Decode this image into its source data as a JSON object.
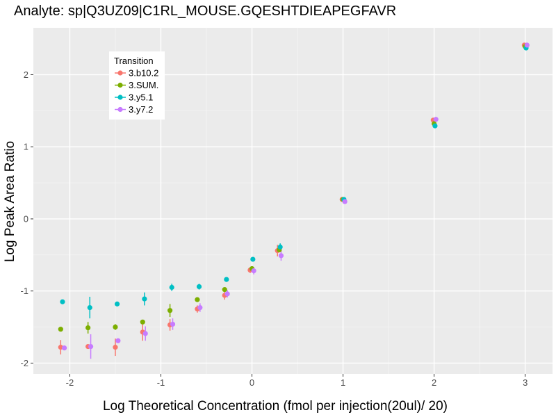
{
  "chart_data": {
    "type": "scatter",
    "title": "Analyte: sp|Q3UZ09|C1RL_MOUSE.GQESHTDIEAPEGFAVR",
    "xlabel": "Log Theoretical Concentration (fmol per injection(20ul)/ 20)",
    "ylabel": "Log Peak Area Ratio",
    "xlim": [
      -2.4,
      3.3
    ],
    "ylim": [
      -2.15,
      2.65
    ],
    "xticks": [
      -2,
      -1,
      0,
      1,
      2,
      3
    ],
    "yticks": [
      -2,
      -1,
      0,
      1,
      2
    ],
    "xtick_labels": [
      "-2",
      "-1",
      "0",
      "1",
      "2",
      "3"
    ],
    "ytick_labels": [
      "-2",
      "-1",
      "0",
      "1",
      "2"
    ],
    "grid": true,
    "legend": {
      "title": "Transition",
      "position": "top-left"
    },
    "series": [
      {
        "name": "3.b10.2",
        "color": "#F8766D",
        "points": [
          {
            "x": -2.1,
            "y": -1.78,
            "err": 0.1
          },
          {
            "x": -1.8,
            "y": -1.77,
            "err": 0.03
          },
          {
            "x": -1.5,
            "y": -1.78,
            "err": 0.12
          },
          {
            "x": -1.2,
            "y": -1.57,
            "err": 0.12
          },
          {
            "x": -0.9,
            "y": -1.47,
            "err": 0.08
          },
          {
            "x": -0.6,
            "y": -1.25,
            "err": 0.05
          },
          {
            "x": -0.3,
            "y": -1.06,
            "err": 0.06
          },
          {
            "x": -0.02,
            "y": -0.71,
            "err": 0.04
          },
          {
            "x": 0.28,
            "y": -0.44,
            "err": 0.08
          },
          {
            "x": 0.99,
            "y": 0.27,
            "err": 0.02
          },
          {
            "x": 1.99,
            "y": 1.37,
            "err": 0.02
          },
          {
            "x": 2.99,
            "y": 2.41,
            "err": 0.02
          }
        ]
      },
      {
        "name": "3.SUM.",
        "color": "#7CAE00",
        "points": [
          {
            "x": -2.1,
            "y": -1.53,
            "err": 0.02
          },
          {
            "x": -1.8,
            "y": -1.51,
            "err": 0.08
          },
          {
            "x": -1.5,
            "y": -1.5,
            "err": 0.04
          },
          {
            "x": -1.2,
            "y": -1.43,
            "err": 0.03
          },
          {
            "x": -0.9,
            "y": -1.27,
            "err": 0.09
          },
          {
            "x": -0.6,
            "y": -1.12,
            "err": 0.03
          },
          {
            "x": -0.3,
            "y": -0.98,
            "err": 0.03
          },
          {
            "x": 0.0,
            "y": -0.69,
            "err": 0.03
          },
          {
            "x": 0.3,
            "y": -0.43,
            "err": 0.03
          },
          {
            "x": 1.0,
            "y": 0.27,
            "err": 0.01
          },
          {
            "x": 2.0,
            "y": 1.32,
            "err": 0.02
          },
          {
            "x": 3.0,
            "y": 2.39,
            "err": 0.01
          }
        ]
      },
      {
        "name": "3.y5.1",
        "color": "#00BFC4",
        "points": [
          {
            "x": -2.08,
            "y": -1.15,
            "err": 0.02
          },
          {
            "x": -1.78,
            "y": -1.23,
            "err": 0.15
          },
          {
            "x": -1.48,
            "y": -1.18,
            "err": 0.02
          },
          {
            "x": -1.18,
            "y": -1.11,
            "err": 0.09
          },
          {
            "x": -0.88,
            "y": -0.95,
            "err": 0.05
          },
          {
            "x": -0.58,
            "y": -0.94,
            "err": 0.04
          },
          {
            "x": -0.28,
            "y": -0.84,
            "err": 0.02
          },
          {
            "x": 0.01,
            "y": -0.56,
            "err": 0.02
          },
          {
            "x": 0.31,
            "y": -0.39,
            "err": 0.05
          },
          {
            "x": 1.01,
            "y": 0.27,
            "err": 0.02
          },
          {
            "x": 2.01,
            "y": 1.29,
            "err": 0.03
          },
          {
            "x": 3.01,
            "y": 2.37,
            "err": 0.02
          }
        ]
      },
      {
        "name": "3.y7.2",
        "color": "#C77CFF",
        "points": [
          {
            "x": -2.06,
            "y": -1.79,
            "err": 0.03
          },
          {
            "x": -1.77,
            "y": -1.77,
            "err": 0.17
          },
          {
            "x": -1.47,
            "y": -1.69,
            "err": 0.03
          },
          {
            "x": -1.17,
            "y": -1.59,
            "err": 0.1
          },
          {
            "x": -0.87,
            "y": -1.46,
            "err": 0.08
          },
          {
            "x": -0.57,
            "y": -1.23,
            "err": 0.06
          },
          {
            "x": -0.27,
            "y": -1.04,
            "err": 0.05
          },
          {
            "x": 0.02,
            "y": -0.72,
            "err": 0.05
          },
          {
            "x": 0.32,
            "y": -0.51,
            "err": 0.07
          },
          {
            "x": 1.02,
            "y": 0.24,
            "err": 0.02
          },
          {
            "x": 2.02,
            "y": 1.38,
            "err": 0.02
          },
          {
            "x": 3.02,
            "y": 2.41,
            "err": 0.02
          }
        ]
      }
    ]
  }
}
